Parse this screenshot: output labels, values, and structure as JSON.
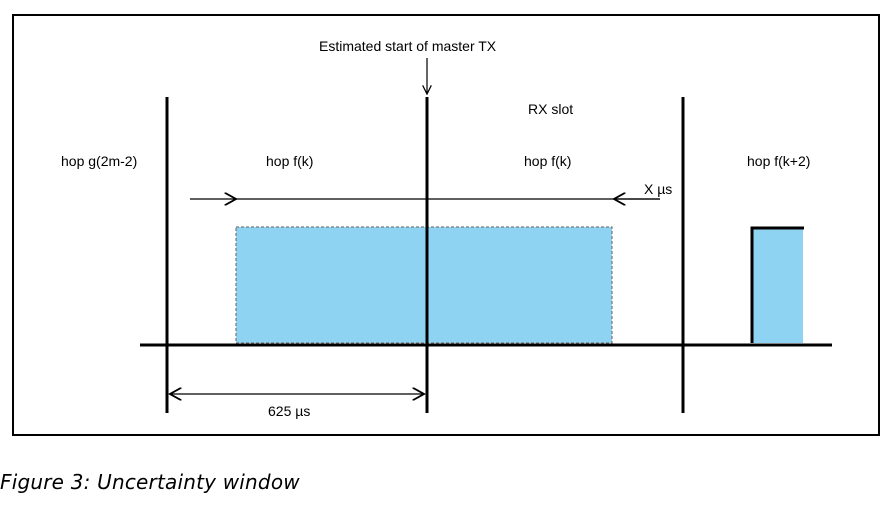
{
  "diagram": {
    "labels": {
      "estimated_start": "Estimated start of master TX",
      "rx_slot": "RX slot",
      "hop_g": "hop g(2m-2)",
      "hop_fk_left": "hop f(k)",
      "hop_fk_right": "hop f(k)",
      "hop_fk2": "hop f(k+2)",
      "x_us": "X µs",
      "duration": "625 µs"
    },
    "colors": {
      "packet_fill": "#8fd3f3",
      "line": "#000000",
      "dashed_border": "#777777"
    }
  },
  "caption": "Figure 3: Uncertainty window"
}
